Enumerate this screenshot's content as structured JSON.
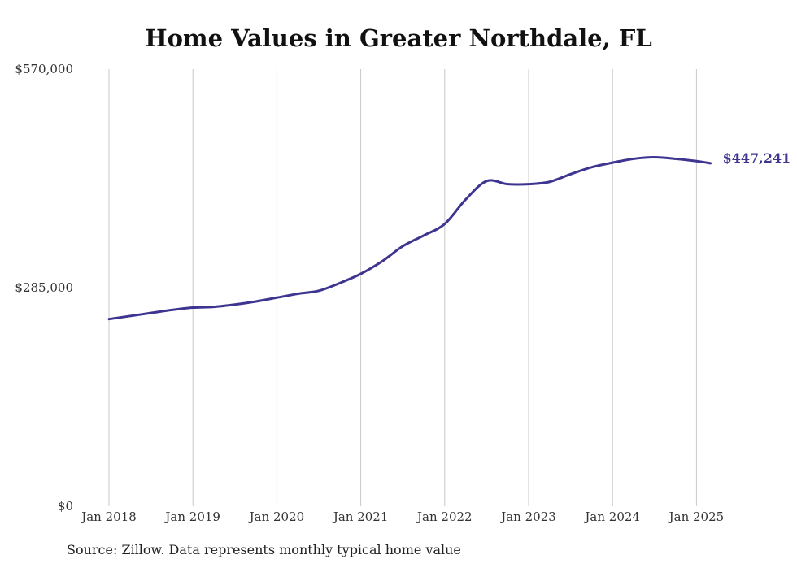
{
  "chart_data": {
    "type": "line",
    "title": "Home Values in Greater Northdale, FL",
    "xlabel": "",
    "ylabel": "",
    "x_tick_labels": [
      "Jan 2018",
      "Jan 2019",
      "Jan 2020",
      "Jan 2021",
      "Jan 2022",
      "Jan 2023",
      "Jan 2024",
      "Jan 2025"
    ],
    "y_tick_labels": [
      "$0",
      "$285,000",
      "$570,000"
    ],
    "y_ticks": [
      0,
      285000,
      570000
    ],
    "ylim": [
      0,
      570000
    ],
    "xlim": [
      "2018-01",
      "2025-03"
    ],
    "grid": "vertical",
    "line_color": "#3d3590",
    "end_label": "$447,241",
    "series": [
      {
        "x": [
          "2018-01",
          "2018-04",
          "2018-07",
          "2018-10",
          "2019-01",
          "2019-04",
          "2019-07",
          "2019-10",
          "2020-01",
          "2020-04",
          "2020-07",
          "2020-10",
          "2021-01",
          "2021-04",
          "2021-07",
          "2021-10",
          "2022-01",
          "2022-04",
          "2022-07",
          "2022-10",
          "2023-01",
          "2023-04",
          "2023-07",
          "2023-10",
          "2024-01",
          "2024-04",
          "2024-07",
          "2024-10",
          "2025-01",
          "2025-03"
        ],
        "values": [
          244000,
          248000,
          252000,
          256000,
          259000,
          260000,
          263000,
          267000,
          272000,
          277000,
          281000,
          291000,
          303000,
          319000,
          339000,
          353000,
          368000,
          400000,
          424000,
          420000,
          420000,
          423000,
          433000,
          442000,
          448000,
          453000,
          455000,
          453000,
          450000,
          447241
        ]
      }
    ]
  },
  "source_note": "Source: Zillow. Data represents monthly typical home value"
}
